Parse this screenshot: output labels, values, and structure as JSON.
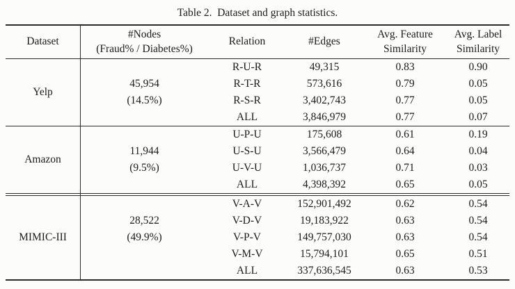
{
  "title": "Table 2.  Dataset and graph statistics.",
  "header": {
    "dataset": "Dataset",
    "nodes_line1": "#Nodes",
    "nodes_line2": "(Fraud% / Diabetes%)",
    "relation": "Relation",
    "edges": "#Edges",
    "feature_line1": "Avg. Feature",
    "feature_line2": "Similarity",
    "label_line1": "Avg. Label",
    "label_line2": "Similarity"
  },
  "groups": [
    {
      "dataset": "Yelp",
      "nodes": "45,954",
      "fraud": "(14.5%)",
      "rows": [
        {
          "relation": "R-U-R",
          "edges": "49,315",
          "feature": "0.83",
          "label": "0.90"
        },
        {
          "relation": "R-T-R",
          "edges": "573,616",
          "feature": "0.79",
          "label": "0.05"
        },
        {
          "relation": "R-S-R",
          "edges": "3,402,743",
          "feature": "0.77",
          "label": "0.05"
        },
        {
          "relation": "ALL",
          "edges": "3,846,979",
          "feature": "0.77",
          "label": "0.07"
        }
      ]
    },
    {
      "dataset": "Amazon",
      "nodes": "11,944",
      "fraud": "(9.5%)",
      "rows": [
        {
          "relation": "U-P-U",
          "edges": "175,608",
          "feature": "0.61",
          "label": "0.19"
        },
        {
          "relation": "U-S-U",
          "edges": "3,566,479",
          "feature": "0.64",
          "label": "0.04"
        },
        {
          "relation": "U-V-U",
          "edges": "1,036,737",
          "feature": "0.71",
          "label": "0.03"
        },
        {
          "relation": "ALL",
          "edges": "4,398,392",
          "feature": "0.65",
          "label": "0.05"
        }
      ]
    },
    {
      "dataset": "MIMIC-III",
      "nodes": "28,522",
      "fraud": "(49.9%)",
      "rows": [
        {
          "relation": "V-A-V",
          "edges": "152,901,492",
          "feature": "0.62",
          "label": "0.54"
        },
        {
          "relation": "V-D-V",
          "edges": "19,183,922",
          "feature": "0.63",
          "label": "0.54"
        },
        {
          "relation": "V-P-V",
          "edges": "149,757,030",
          "feature": "0.63",
          "label": "0.54"
        },
        {
          "relation": "V-M-V",
          "edges": "15,794,101",
          "feature": "0.65",
          "label": "0.51"
        },
        {
          "relation": "ALL",
          "edges": "337,636,545",
          "feature": "0.63",
          "label": "0.53"
        }
      ]
    }
  ],
  "colors": {
    "text": "#1b1b1b",
    "rule": "#2a2a2a",
    "background": "#fcfcfb"
  }
}
